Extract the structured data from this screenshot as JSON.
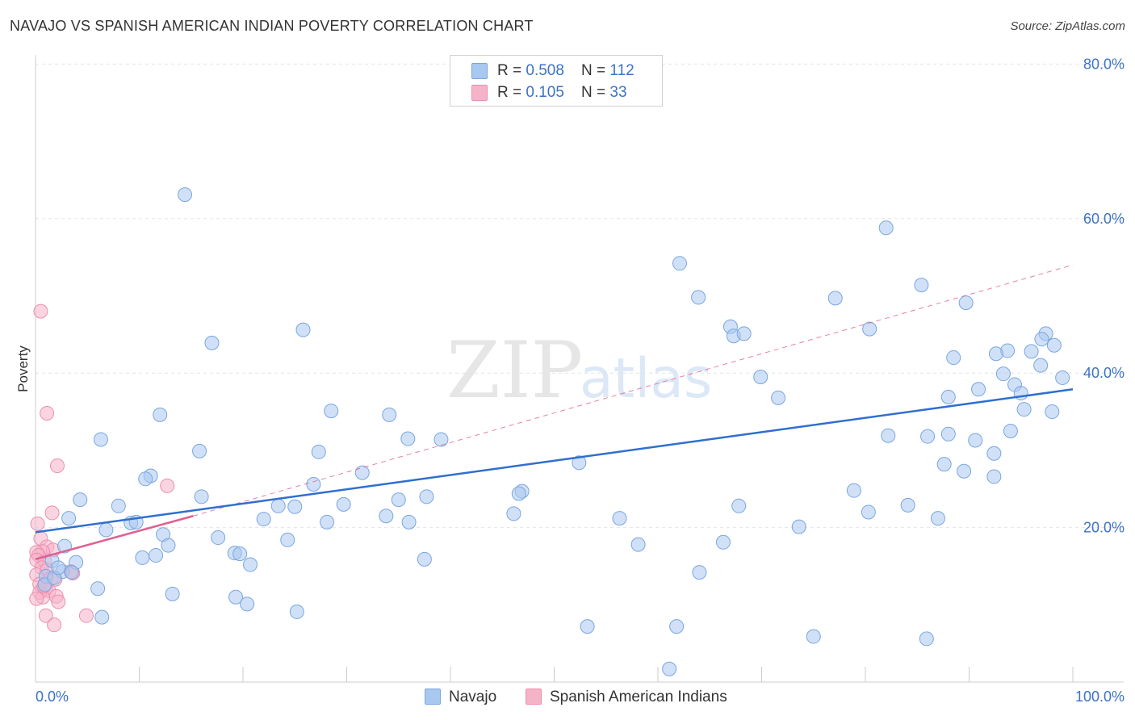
{
  "title": "NAVAJO VS SPANISH AMERICAN INDIAN POVERTY CORRELATION CHART",
  "source": "Source: ZipAtlas.com",
  "watermark": {
    "zip": "ZIP",
    "atlas": "atlas"
  },
  "legend": {
    "rows": [
      {
        "r_label": "R = ",
        "r_value": "0.508",
        "n_label": "N = ",
        "n_value": "112",
        "color": "#a9c8f0"
      },
      {
        "r_label": "R = ",
        "r_value": "0.105",
        "n_label": "N = ",
        "n_value": "33",
        "color": "#f5b3c8"
      }
    ]
  },
  "bottom_legend": [
    {
      "label": "Navajo",
      "color": "#a9c8f0"
    },
    {
      "label": "Spanish American Indians",
      "color": "#f5b3c8"
    }
  ],
  "colors": {
    "navajo_fill": "#a9c8f0",
    "navajo_stroke": "#7aa6df",
    "navajo_line": "#2f6fcf",
    "spanish_fill": "#f5b3c8",
    "spanish_stroke": "#ec8fae",
    "spanish_line": "#e06090",
    "tick_label": "#3d72c6"
  },
  "chart_data": {
    "type": "scatter",
    "title": "NAVAJO VS SPANISH AMERICAN INDIAN POVERTY CORRELATION CHART",
    "xlabel": "",
    "ylabel": "Poverty",
    "xlim": [
      0,
      100
    ],
    "ylim": [
      0,
      82
    ],
    "x_tick_labels": [
      {
        "value": 0,
        "label": "0.0%"
      },
      {
        "value": 100,
        "label": "100.0%"
      }
    ],
    "y_tick_labels": [
      {
        "value": 20,
        "label": "20.0%"
      },
      {
        "value": 40,
        "label": "40.0%"
      },
      {
        "value": 60,
        "label": "60.0%"
      },
      {
        "value": 80,
        "label": "80.0%"
      }
    ],
    "grid": true,
    "legend_position": "top-center",
    "series": [
      {
        "name": "Navajo",
        "r": 0.508,
        "n": 112,
        "trend": {
          "x": [
            0,
            100
          ],
          "y": [
            19.4,
            37.9
          ]
        },
        "points": [
          [
            14.4,
            63.1
          ],
          [
            82.0,
            58.8
          ],
          [
            62.1,
            54.2
          ],
          [
            85.4,
            51.4
          ],
          [
            63.9,
            49.8
          ],
          [
            77.1,
            49.7
          ],
          [
            89.7,
            49.1
          ],
          [
            25.8,
            45.6
          ],
          [
            67.0,
            46.0
          ],
          [
            67.3,
            44.8
          ],
          [
            68.3,
            45.1
          ],
          [
            80.4,
            45.7
          ],
          [
            97.4,
            45.1
          ],
          [
            97.0,
            44.4
          ],
          [
            98.2,
            43.6
          ],
          [
            93.7,
            42.9
          ],
          [
            96.0,
            42.8
          ],
          [
            92.6,
            42.5
          ],
          [
            88.5,
            42.0
          ],
          [
            17.0,
            43.9
          ],
          [
            96.9,
            41.0
          ],
          [
            93.3,
            39.9
          ],
          [
            94.4,
            38.5
          ],
          [
            69.9,
            39.5
          ],
          [
            99.0,
            39.4
          ],
          [
            90.9,
            37.9
          ],
          [
            71.6,
            36.8
          ],
          [
            88.0,
            36.9
          ],
          [
            95.0,
            37.4
          ],
          [
            95.3,
            35.3
          ],
          [
            98.0,
            35.0
          ],
          [
            28.5,
            35.1
          ],
          [
            34.1,
            34.6
          ],
          [
            12.0,
            34.6
          ],
          [
            6.3,
            31.4
          ],
          [
            35.9,
            31.5
          ],
          [
            39.1,
            31.4
          ],
          [
            82.2,
            31.9
          ],
          [
            94.0,
            32.5
          ],
          [
            86.0,
            31.8
          ],
          [
            88.0,
            32.1
          ],
          [
            90.6,
            31.3
          ],
          [
            15.8,
            29.9
          ],
          [
            27.3,
            29.8
          ],
          [
            92.4,
            29.6
          ],
          [
            87.6,
            28.2
          ],
          [
            52.4,
            28.4
          ],
          [
            31.5,
            27.1
          ],
          [
            89.5,
            27.3
          ],
          [
            11.1,
            26.7
          ],
          [
            10.6,
            26.3
          ],
          [
            92.4,
            26.6
          ],
          [
            26.8,
            25.6
          ],
          [
            46.9,
            24.7
          ],
          [
            46.6,
            24.4
          ],
          [
            78.9,
            24.8
          ],
          [
            16.0,
            24.0
          ],
          [
            37.7,
            24.0
          ],
          [
            35.0,
            23.6
          ],
          [
            4.3,
            23.6
          ],
          [
            29.7,
            23.0
          ],
          [
            23.4,
            22.8
          ],
          [
            25.0,
            22.7
          ],
          [
            8.0,
            22.8
          ],
          [
            67.8,
            22.8
          ],
          [
            84.1,
            22.9
          ],
          [
            80.3,
            22.0
          ],
          [
            46.1,
            21.8
          ],
          [
            33.8,
            21.5
          ],
          [
            22.0,
            21.1
          ],
          [
            3.2,
            21.2
          ],
          [
            36.0,
            20.7
          ],
          [
            28.1,
            20.7
          ],
          [
            56.3,
            21.2
          ],
          [
            87.0,
            21.2
          ],
          [
            9.2,
            20.6
          ],
          [
            9.7,
            20.7
          ],
          [
            73.6,
            20.1
          ],
          [
            6.8,
            19.7
          ],
          [
            12.3,
            19.1
          ],
          [
            17.6,
            18.7
          ],
          [
            24.3,
            18.4
          ],
          [
            66.3,
            18.1
          ],
          [
            58.1,
            17.8
          ],
          [
            12.8,
            17.7
          ],
          [
            2.8,
            17.6
          ],
          [
            19.2,
            16.7
          ],
          [
            19.7,
            16.6
          ],
          [
            10.3,
            16.1
          ],
          [
            11.6,
            16.4
          ],
          [
            37.5,
            15.9
          ],
          [
            1.6,
            15.7
          ],
          [
            3.9,
            15.5
          ],
          [
            20.7,
            15.2
          ],
          [
            2.6,
            14.3
          ],
          [
            3.5,
            14.2
          ],
          [
            64.0,
            14.2
          ],
          [
            1.0,
            13.7
          ],
          [
            6.0,
            12.1
          ],
          [
            13.2,
            11.4
          ],
          [
            19.3,
            11.0
          ],
          [
            20.4,
            10.1
          ],
          [
            6.4,
            8.4
          ],
          [
            25.2,
            9.1
          ],
          [
            53.2,
            7.2
          ],
          [
            61.8,
            7.2
          ],
          [
            75.0,
            5.9
          ],
          [
            85.9,
            5.6
          ],
          [
            61.1,
            1.7
          ],
          [
            0.9,
            12.6
          ],
          [
            1.8,
            13.5
          ],
          [
            2.2,
            14.8
          ]
        ]
      },
      {
        "name": "Spanish American Indians",
        "r": 0.105,
        "n": 33,
        "trend": {
          "x": [
            0,
            15.2
          ],
          "y": [
            15.9,
            21.5
          ]
        },
        "trend_extended": {
          "x": [
            15.2,
            100
          ],
          "y": [
            21.5,
            54.0
          ]
        },
        "points": [
          [
            0.5,
            48.0
          ],
          [
            1.1,
            34.8
          ],
          [
            2.1,
            28.0
          ],
          [
            12.7,
            25.4
          ],
          [
            1.6,
            21.9
          ],
          [
            0.2,
            20.5
          ],
          [
            0.5,
            18.6
          ],
          [
            1.1,
            17.5
          ],
          [
            1.7,
            17.1
          ],
          [
            0.7,
            16.9
          ],
          [
            0.1,
            16.8
          ],
          [
            0.3,
            16.4
          ],
          [
            0.1,
            15.8
          ],
          [
            0.9,
            15.6
          ],
          [
            0.6,
            14.8
          ],
          [
            1.1,
            14.5
          ],
          [
            3.4,
            14.3
          ],
          [
            3.6,
            14.1
          ],
          [
            0.1,
            13.9
          ],
          [
            1.5,
            13.4
          ],
          [
            1.9,
            13.3
          ],
          [
            0.4,
            12.7
          ],
          [
            1.0,
            12.1
          ],
          [
            1.3,
            11.8
          ],
          [
            0.4,
            11.6
          ],
          [
            2.0,
            11.1
          ],
          [
            0.7,
            11.0
          ],
          [
            0.1,
            10.8
          ],
          [
            2.2,
            10.4
          ],
          [
            4.9,
            8.6
          ],
          [
            1.0,
            8.6
          ],
          [
            1.8,
            7.4
          ],
          [
            0.8,
            12.4
          ]
        ]
      }
    ]
  }
}
